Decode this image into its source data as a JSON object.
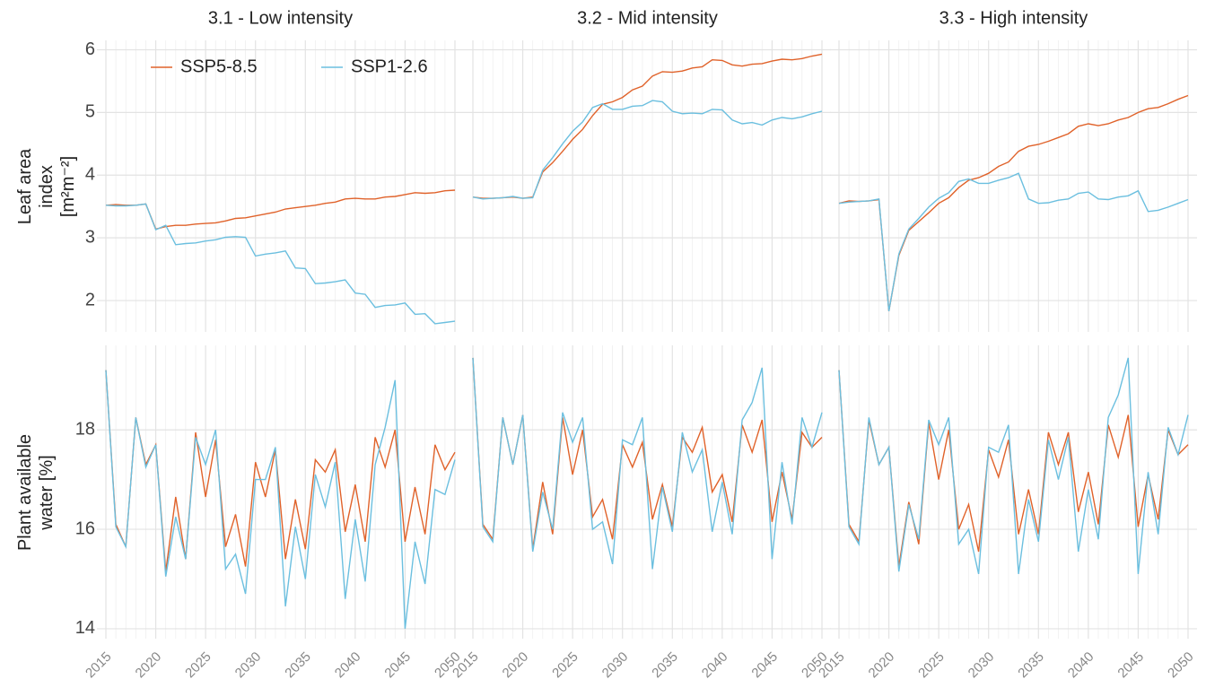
{
  "chart_data": {
    "type": "line",
    "grid": true,
    "legend": "top-left",
    "x": [
      2015,
      2016,
      2017,
      2018,
      2019,
      2020,
      2021,
      2022,
      2023,
      2024,
      2025,
      2026,
      2027,
      2028,
      2029,
      2030,
      2031,
      2032,
      2033,
      2034,
      2035,
      2036,
      2037,
      2038,
      2039,
      2040,
      2041,
      2042,
      2043,
      2044,
      2045,
      2046,
      2047,
      2048,
      2049,
      2050
    ],
    "xlim": [
      2015,
      2050
    ],
    "xticks": [
      2015,
      2020,
      2025,
      2030,
      2035,
      2040,
      2045,
      2050
    ],
    "series": [
      {
        "name": "SSP5-8.5",
        "color": "#e0622a"
      },
      {
        "name": "SSP1-2.6",
        "color": "#6bbfdf"
      }
    ],
    "facets": {
      "columns": [
        "3.1 - Low intensity",
        "3.2 - Mid intensity",
        "3.3 - High intensity"
      ],
      "rows": [
        {
          "ylabel": "Leaf area index [m²m⁻²]",
          "ylim": [
            1.5,
            6.15
          ],
          "yticks": [
            2,
            3,
            4,
            5,
            6
          ],
          "panels": [
            [
              [
                3.52,
                3.53,
                3.52,
                3.52,
                3.54,
                3.14,
                3.18,
                3.2,
                3.2,
                3.22,
                3.23,
                3.24,
                3.27,
                3.31,
                3.32,
                3.35,
                3.38,
                3.41,
                3.46,
                3.48,
                3.5,
                3.52,
                3.55,
                3.57,
                3.62,
                3.63,
                3.62,
                3.62,
                3.65,
                3.66,
                3.69,
                3.72,
                3.71,
                3.72,
                3.75,
                3.76
              ],
              [
                3.52,
                3.51,
                3.51,
                3.52,
                3.54,
                3.13,
                3.2,
                2.89,
                2.91,
                2.92,
                2.95,
                2.97,
                3.01,
                3.02,
                3.01,
                2.71,
                2.74,
                2.76,
                2.79,
                2.52,
                2.51,
                2.27,
                2.28,
                2.3,
                2.33,
                2.12,
                2.1,
                1.89,
                1.92,
                1.93,
                1.96,
                1.78,
                1.79,
                1.63,
                1.65,
                1.67
              ]
            ],
            [
              [
                3.65,
                3.63,
                3.63,
                3.64,
                3.65,
                3.63,
                3.65,
                4.05,
                4.2,
                4.38,
                4.57,
                4.73,
                4.95,
                5.13,
                5.17,
                5.24,
                5.36,
                5.42,
                5.58,
                5.65,
                5.64,
                5.66,
                5.71,
                5.73,
                5.84,
                5.83,
                5.76,
                5.74,
                5.77,
                5.78,
                5.82,
                5.85,
                5.84,
                5.86,
                5.9,
                5.93
              ],
              [
                3.65,
                3.62,
                3.63,
                3.64,
                3.66,
                3.63,
                3.64,
                4.08,
                4.28,
                4.5,
                4.7,
                4.85,
                5.08,
                5.14,
                5.05,
                5.05,
                5.1,
                5.11,
                5.19,
                5.17,
                5.02,
                4.98,
                4.99,
                4.98,
                5.05,
                5.04,
                4.88,
                4.82,
                4.84,
                4.8,
                4.88,
                4.92,
                4.9,
                4.93,
                4.98,
                5.02
              ]
            ],
            [
              [
                3.55,
                3.59,
                3.58,
                3.59,
                3.61,
                1.83,
                2.72,
                3.12,
                3.26,
                3.4,
                3.55,
                3.64,
                3.8,
                3.92,
                3.96,
                4.03,
                4.14,
                4.21,
                4.38,
                4.46,
                4.49,
                4.54,
                4.6,
                4.66,
                4.78,
                4.82,
                4.79,
                4.82,
                4.88,
                4.92,
                5.0,
                5.06,
                5.08,
                5.14,
                5.21,
                5.27
              ],
              [
                3.55,
                3.57,
                3.58,
                3.59,
                3.62,
                1.83,
                2.74,
                3.14,
                3.31,
                3.49,
                3.63,
                3.72,
                3.9,
                3.94,
                3.87,
                3.87,
                3.92,
                3.96,
                4.03,
                3.62,
                3.55,
                3.56,
                3.6,
                3.62,
                3.71,
                3.73,
                3.62,
                3.61,
                3.65,
                3.67,
                3.75,
                3.42,
                3.44,
                3.49,
                3.55,
                3.61
              ]
            ]
          ]
        },
        {
          "ylabel": "Plant available water [%]",
          "ylim": [
            13.8,
            19.7
          ],
          "yticks": [
            14,
            16,
            18
          ],
          "panels": [
            [
              [
                19.2,
                16.1,
                15.65,
                18.25,
                17.3,
                17.7,
                15.15,
                16.65,
                15.4,
                17.95,
                16.65,
                17.8,
                15.65,
                16.3,
                15.25,
                17.35,
                16.65,
                17.6,
                15.4,
                16.6,
                15.6,
                17.4,
                17.15,
                17.6,
                15.95,
                16.9,
                15.75,
                17.85,
                17.25,
                18.0,
                15.75,
                16.85,
                15.9,
                17.7,
                17.2,
                17.55
              ],
              [
                19.2,
                16.05,
                15.65,
                18.25,
                17.25,
                17.7,
                15.05,
                16.25,
                15.4,
                17.85,
                17.3,
                18.0,
                15.2,
                15.5,
                14.7,
                17.0,
                17.0,
                17.65,
                14.45,
                16.05,
                15.0,
                17.1,
                16.45,
                17.35,
                14.6,
                16.2,
                14.95,
                17.3,
                18.05,
                19.0,
                14.0,
                15.75,
                14.9,
                16.8,
                16.7,
                17.4
              ]
            ],
            [
              [
                19.45,
                16.1,
                15.8,
                18.25,
                17.3,
                18.3,
                15.6,
                16.95,
                15.9,
                18.25,
                17.1,
                18.0,
                16.25,
                16.6,
                15.8,
                17.7,
                17.25,
                17.75,
                16.2,
                16.9,
                16.05,
                17.85,
                17.55,
                18.05,
                16.75,
                17.1,
                16.15,
                18.1,
                17.55,
                18.2,
                16.15,
                17.15,
                16.2,
                17.95,
                17.65,
                17.85
              ],
              [
                19.45,
                16.05,
                15.75,
                18.25,
                17.3,
                18.3,
                15.55,
                16.75,
                16.0,
                18.35,
                17.75,
                18.25,
                16.0,
                16.15,
                15.3,
                17.8,
                17.7,
                18.25,
                15.2,
                16.85,
                15.95,
                17.95,
                17.15,
                17.6,
                15.95,
                16.95,
                15.9,
                18.2,
                18.55,
                19.25,
                15.4,
                17.35,
                16.1,
                18.25,
                17.65,
                18.35
              ]
            ],
            [
              [
                19.2,
                16.1,
                15.75,
                18.2,
                17.3,
                17.65,
                15.25,
                16.55,
                15.7,
                18.15,
                17.0,
                18.0,
                16.0,
                16.5,
                15.55,
                17.6,
                17.05,
                17.8,
                15.9,
                16.8,
                15.9,
                17.95,
                17.3,
                17.95,
                16.35,
                17.15,
                16.1,
                18.1,
                17.45,
                18.3,
                16.05,
                17.1,
                16.2,
                18.0,
                17.5,
                17.7
              ],
              [
                19.2,
                16.05,
                15.7,
                18.25,
                17.3,
                17.65,
                15.15,
                16.5,
                15.8,
                18.2,
                17.7,
                18.25,
                15.7,
                16.0,
                15.1,
                17.65,
                17.55,
                18.1,
                15.1,
                16.6,
                15.75,
                17.8,
                17.0,
                17.85,
                15.55,
                16.8,
                15.8,
                18.25,
                18.7,
                19.45,
                15.1,
                17.15,
                15.9,
                18.05,
                17.5,
                18.3
              ]
            ]
          ]
        }
      ]
    }
  }
}
